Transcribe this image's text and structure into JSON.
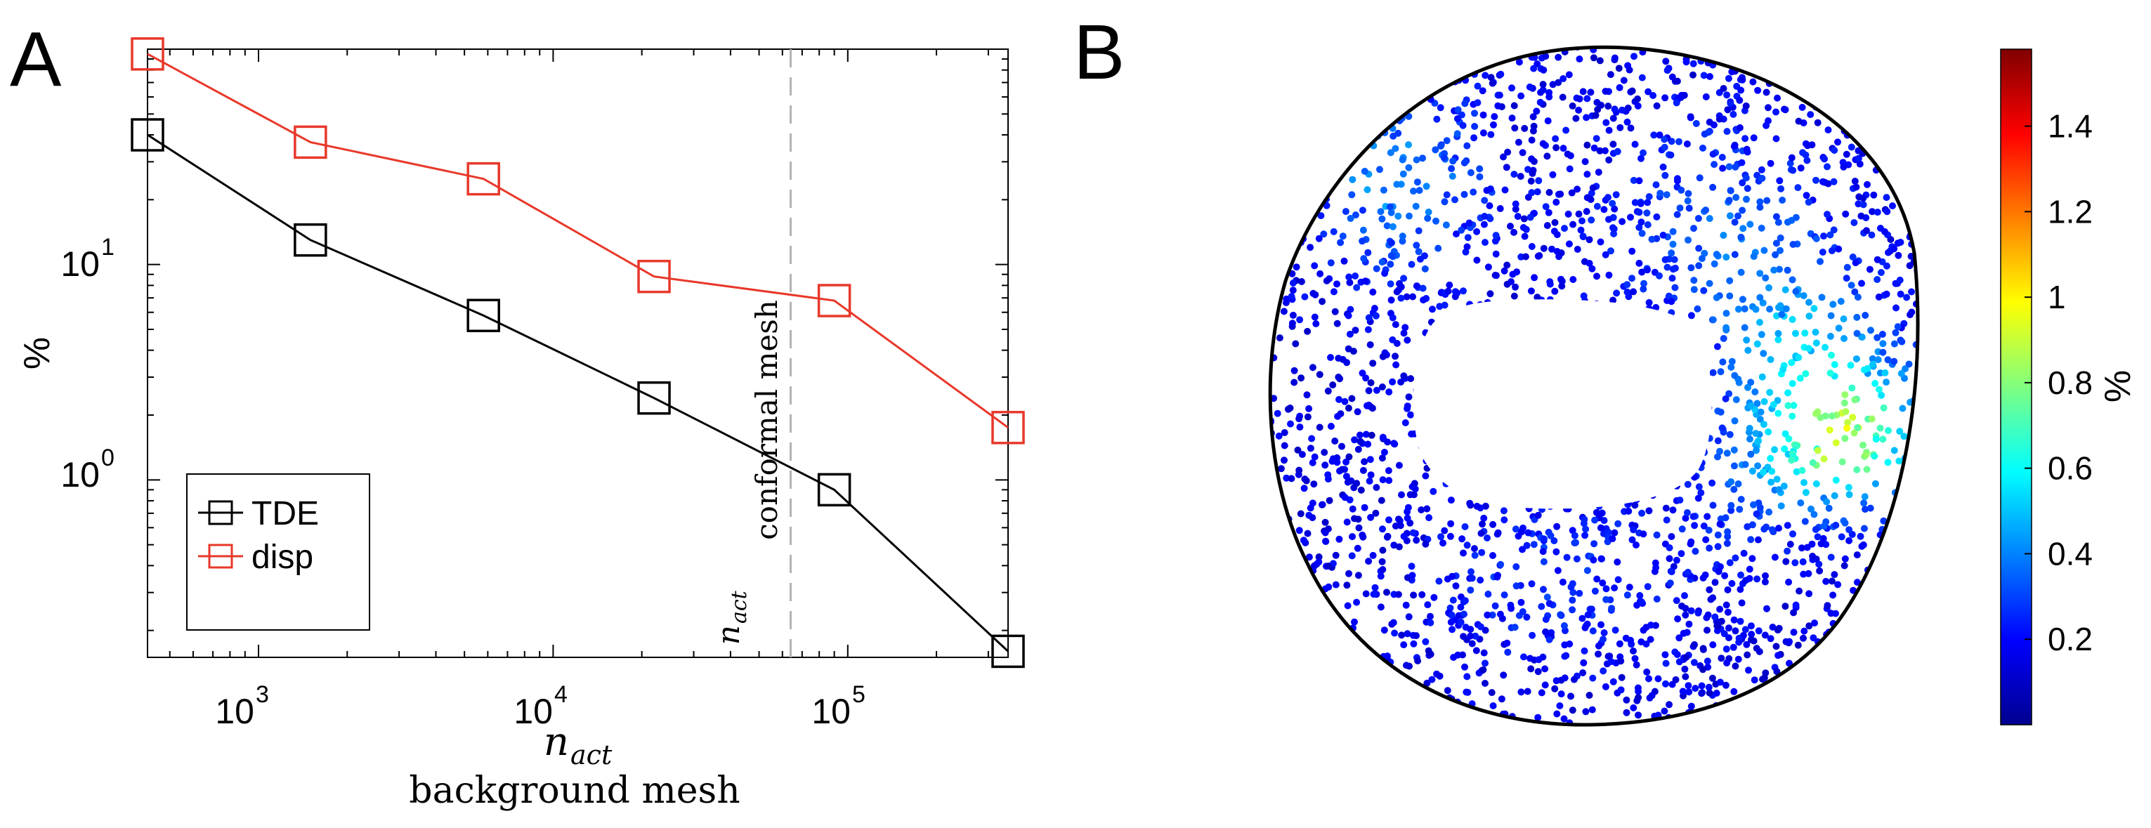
{
  "panel_a": {
    "label": "A",
    "ylabel": "%",
    "xlabel_math": "n",
    "xlabel_sub": "act",
    "xlabel_text": "background mesh",
    "vline_text": "conformal mesh",
    "vline_math": "n",
    "vline_sub": "act",
    "xticks": [
      {
        "base": "10",
        "exp": "3"
      },
      {
        "base": "10",
        "exp": "4"
      },
      {
        "base": "10",
        "exp": "5"
      }
    ],
    "yticks": [
      {
        "base": "10",
        "exp": "1"
      },
      {
        "base": "10",
        "exp": "0"
      }
    ]
  },
  "panel_b": {
    "label": "B",
    "colorbar_label": "%",
    "colorbar_ticks": [
      "0.2",
      "0.4",
      "0.6",
      "0.8",
      "1",
      "1.2",
      "1.4"
    ]
  },
  "colors": {
    "tde": "#000000",
    "disp": "#e8382a",
    "vline": "#b3b3b3",
    "outline": "#000000"
  },
  "chart_data": [
    {
      "type": "line",
      "title": "",
      "xlabel": "n_act background mesh",
      "ylabel": "%",
      "xscale": "log",
      "yscale": "log",
      "xlim": [
        420,
        350000
      ],
      "ylim": [
        0.15,
        100
      ],
      "vline": {
        "x": 64000,
        "label": "n_act conformal mesh"
      },
      "legend": {
        "position": "bottom-left",
        "entries": [
          "TDE",
          "disp"
        ]
      },
      "series": [
        {
          "name": "TDE",
          "x": [
            420,
            1500,
            5800,
            22000,
            90000,
            350000
          ],
          "y": [
            40,
            13,
            5.8,
            2.4,
            0.9,
            0.16
          ]
        },
        {
          "name": "disp",
          "x": [
            420,
            1500,
            5800,
            22000,
            90000,
            350000
          ],
          "y": [
            95,
            37,
            25,
            8.8,
            6.8,
            1.75
          ]
        }
      ]
    },
    {
      "type": "scatter",
      "title": "",
      "description_colorbar": "jet",
      "colorbar": {
        "label": "%",
        "min": 0.0,
        "max": 1.58,
        "ticks": [
          0.2,
          0.4,
          0.6,
          0.8,
          1,
          1.2,
          1.4
        ]
      },
      "point_count": 3200,
      "hotspots": [
        {
          "region": "right",
          "value": 0.9
        },
        {
          "region": "upper-left",
          "value": 0.55
        },
        {
          "region": "upper-right",
          "value": 0.45
        }
      ],
      "baseline_value": 0.1
    }
  ]
}
